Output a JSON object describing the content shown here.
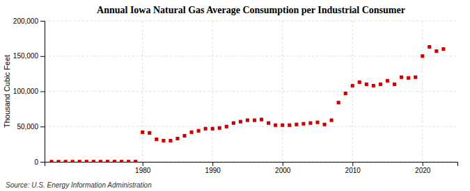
{
  "chart_data": {
    "type": "scatter",
    "title": "Annual Iowa Natural Gas Average Consumption per Industrial Consumer",
    "ylabel": "Thousand Cubic Feet",
    "source": "Source: U.S. Energy Information Administration",
    "x": [
      1967,
      1968,
      1969,
      1970,
      1971,
      1972,
      1973,
      1974,
      1975,
      1976,
      1977,
      1978,
      1979,
      1980,
      1981,
      1982,
      1983,
      1984,
      1985,
      1986,
      1987,
      1988,
      1989,
      1990,
      1991,
      1992,
      1993,
      1994,
      1995,
      1996,
      1997,
      1998,
      1999,
      2000,
      2001,
      2002,
      2003,
      2004,
      2005,
      2006,
      2007,
      2008,
      2009,
      2010,
      2011,
      2012,
      2013,
      2014,
      2015,
      2016,
      2017,
      2018,
      2019,
      2020,
      2021,
      2022,
      2023
    ],
    "values": [
      200,
      200,
      300,
      300,
      300,
      300,
      300,
      300,
      300,
      300,
      300,
      300,
      300,
      42000,
      41000,
      32000,
      30000,
      30000,
      33000,
      37000,
      42000,
      44000,
      47000,
      47000,
      48000,
      50000,
      55000,
      57000,
      59000,
      59000,
      60000,
      55000,
      52000,
      52000,
      52000,
      53000,
      54000,
      55000,
      56000,
      53000,
      59000,
      84000,
      97000,
      108000,
      113000,
      110000,
      108000,
      110000,
      115000,
      110000,
      120000,
      119000,
      120000,
      150000,
      163000,
      157000,
      160000
    ],
    "color": "#cc0000",
    "marker": "square",
    "xlim": [
      1966,
      2025
    ],
    "xticks": [
      1980,
      1990,
      2000,
      2010,
      2020
    ],
    "ylim": [
      0,
      200000
    ],
    "yticks": [
      0,
      {
        "value": 50000,
        "label": "50,000"
      },
      {
        "value": 100000,
        "label": "100,000"
      },
      {
        "value": 150000,
        "label": "150,000"
      },
      {
        "value": 200000,
        "label": "200,000"
      }
    ],
    "grid": true
  }
}
